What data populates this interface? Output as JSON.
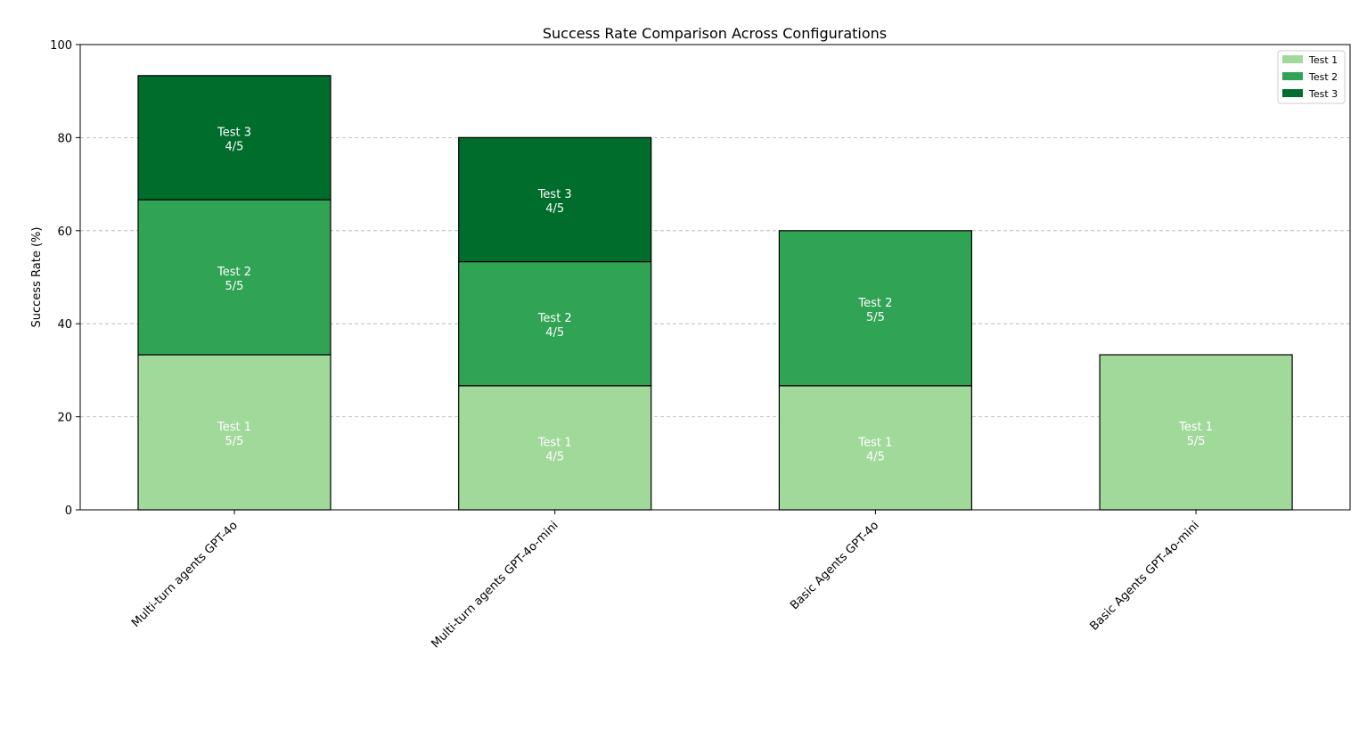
{
  "chart_data": {
    "type": "bar",
    "stacked": true,
    "title": "Success Rate Comparison Across Configurations",
    "xlabel": "",
    "ylabel": "Success Rate (%)",
    "ylim": [
      0,
      100
    ],
    "yticks": [
      0,
      20,
      40,
      60,
      80,
      100
    ],
    "grid": "y-dashed",
    "legend_position": "top-right",
    "categories": [
      "Multi-turn agents GPT-4o",
      "Multi-turn agents GPT-4o-mini",
      "Basic Agents GPT-4o",
      "Basic Agents GPT-4o-mini"
    ],
    "series": [
      {
        "name": "Test 1",
        "color": "#a1d99b",
        "values": [
          33.33,
          26.67,
          26.67,
          33.33
        ],
        "labels": [
          "5/5",
          "4/5",
          "4/5",
          "5/5"
        ]
      },
      {
        "name": "Test 2",
        "color": "#31a354",
        "values": [
          33.33,
          26.67,
          33.33,
          null
        ],
        "labels": [
          "5/5",
          "4/5",
          "5/5",
          null
        ]
      },
      {
        "name": "Test 3",
        "color": "#006d2c",
        "values": [
          26.67,
          26.67,
          null,
          null
        ],
        "labels": [
          "4/5",
          "4/5",
          null,
          null
        ]
      }
    ]
  }
}
